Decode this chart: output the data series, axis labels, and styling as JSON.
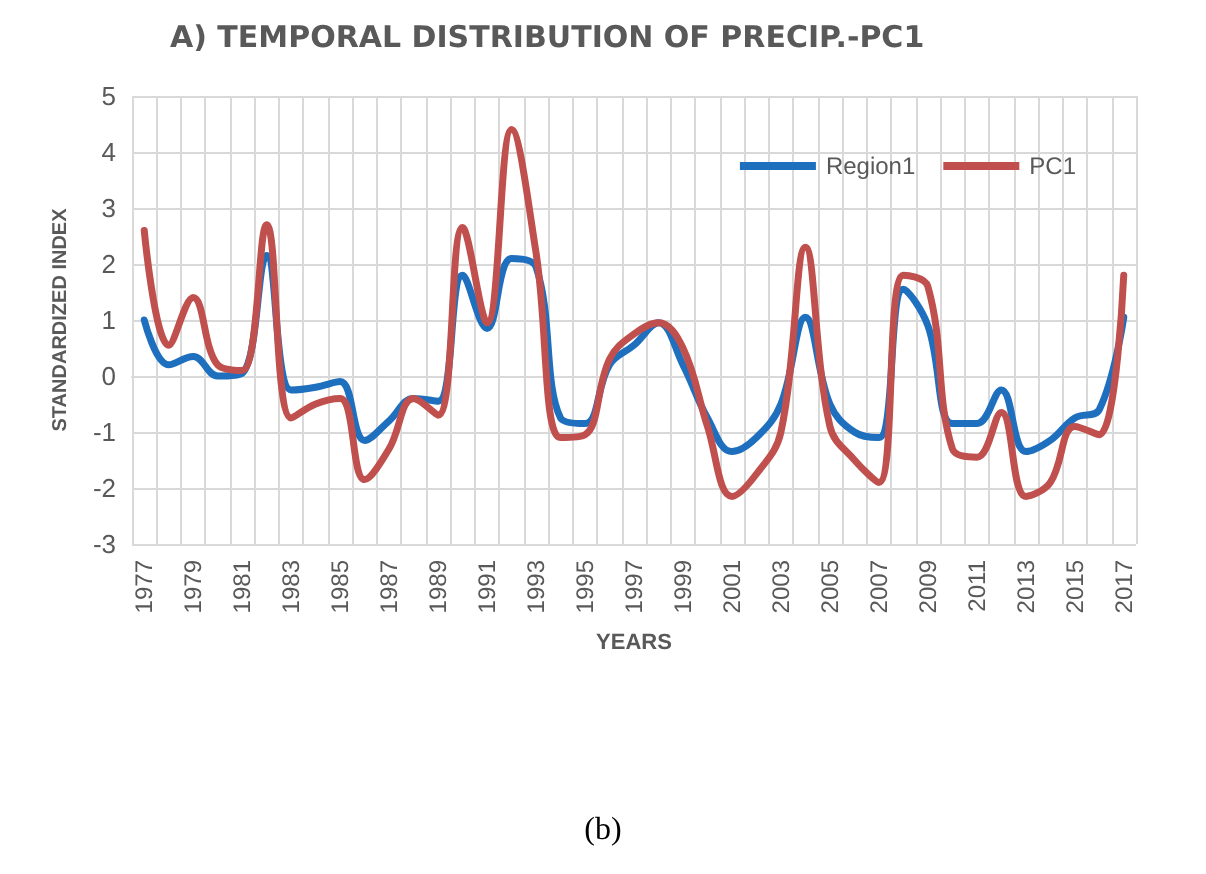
{
  "chart_data": {
    "type": "line",
    "title": "A) TEMPORAL DISTRIBUTION OF PRECIP.-PC1",
    "xlabel": "YEARS",
    "ylabel": "STANDARDIZED INDEX",
    "annotations": [
      "(b)"
    ],
    "categories": [
      "1977",
      null,
      "1979",
      null,
      "1981",
      null,
      "1983",
      null,
      "1985",
      null,
      "1987",
      null,
      "1989",
      null,
      "1991",
      null,
      "1993",
      null,
      "1995",
      null,
      "1997",
      null,
      "1999",
      null,
      "2001",
      null,
      "2003",
      null,
      "2005",
      null,
      "2007",
      null,
      "2009",
      null,
      "2011",
      null,
      "2013",
      null,
      "2015",
      null,
      "2017"
    ],
    "series": [
      {
        "name": "Region1",
        "color": "#1f6fbf",
        "values": [
          1.0,
          0.2,
          0.35,
          0.0,
          0.05,
          2.15,
          -0.25,
          -0.2,
          -0.1,
          -1.15,
          -0.8,
          -0.4,
          -0.45,
          1.8,
          0.85,
          2.1,
          1.95,
          -0.75,
          -0.85,
          0.2,
          0.55,
          0.95,
          0.2,
          -0.75,
          -1.35,
          -1.1,
          -0.5,
          1.05,
          -0.5,
          -1.0,
          -1.1,
          1.55,
          0.9,
          -0.85,
          -0.85,
          -0.25,
          -1.35,
          -1.15,
          -0.75,
          -0.6,
          1.05
        ]
      },
      {
        "name": "PC1",
        "color": "#c0504d",
        "values": [
          2.6,
          0.55,
          1.4,
          0.2,
          0.1,
          2.7,
          -0.75,
          -0.5,
          -0.4,
          -1.85,
          -1.3,
          -0.4,
          -0.7,
          2.65,
          0.95,
          4.4,
          2.2,
          -1.1,
          -1.05,
          0.3,
          0.75,
          0.95,
          0.5,
          -0.9,
          -2.15,
          -1.75,
          -1.0,
          2.3,
          -0.9,
          -1.5,
          -1.9,
          1.8,
          1.6,
          -1.3,
          -1.45,
          -0.65,
          -2.15,
          -1.9,
          -0.9,
          -1.05,
          1.8
        ]
      }
    ],
    "ylim": [
      -3,
      5
    ],
    "yticks": [
      -3,
      -2,
      -1,
      0,
      1,
      2,
      3,
      4,
      5
    ],
    "grid": true,
    "legend": "top right",
    "marker": "none",
    "line_style": "solid"
  }
}
